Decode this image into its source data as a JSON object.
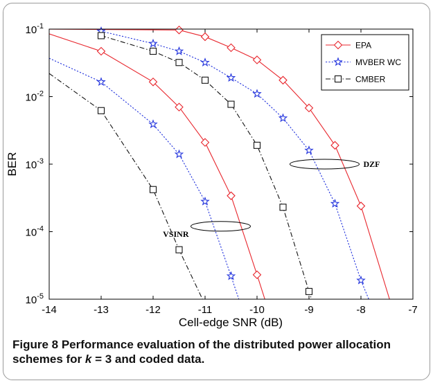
{
  "chart_data": {
    "type": "line",
    "xlabel": "Cell-edge SNR (dB)",
    "ylabel": "BER",
    "xlim": [
      -14,
      -7
    ],
    "ylim": [
      1e-05,
      0.1
    ],
    "yscale": "log",
    "xticks": [
      "-14",
      "-13",
      "-12",
      "-11",
      "-10",
      "-9",
      "-8",
      "-7"
    ],
    "yticks": [
      {
        "base": "10",
        "exp": "-1"
      },
      {
        "base": "10",
        "exp": "-2"
      },
      {
        "base": "10",
        "exp": "-3"
      },
      {
        "base": "10",
        "exp": "-4"
      },
      {
        "base": "10",
        "exp": "-5"
      }
    ],
    "legend": {
      "position": "top-right",
      "entries": [
        {
          "label": "EPA",
          "marker": "diamond",
          "color": "#e8262d",
          "dash": "solid"
        },
        {
          "label": "MVBER WC",
          "marker": "star",
          "color": "#2233dd",
          "dash": "dotted"
        },
        {
          "label": "CMBER",
          "marker": "square",
          "color": "#111111",
          "dash": "dashdot"
        }
      ]
    },
    "series": [
      {
        "name": "EPA",
        "group": "VSINR",
        "marker": "diamond",
        "color": "#e8262d",
        "dash": "solid",
        "x": [
          -14,
          -13,
          -12,
          -11.5,
          -11,
          -10.5,
          -10,
          -9.85
        ],
        "y": [
          0.085,
          0.047,
          0.0165,
          0.007,
          0.0021,
          0.00034,
          2.3e-05,
          1e-05
        ]
      },
      {
        "name": "MVBER WC",
        "group": "VSINR",
        "marker": "star",
        "color": "#2233dd",
        "dash": "dotted",
        "x": [
          -14,
          -13,
          -12,
          -11.5,
          -11,
          -10.5,
          -10.35
        ],
        "y": [
          0.037,
          0.0165,
          0.0039,
          0.0014,
          0.00028,
          2.2e-05,
          1e-05
        ]
      },
      {
        "name": "CMBER",
        "group": "VSINR",
        "marker": "square",
        "color": "#111111",
        "dash": "dashdot",
        "x": [
          -14,
          -13,
          -12,
          -11.5,
          -11.05
        ],
        "y": [
          0.022,
          0.0062,
          0.00042,
          5.4e-05,
          1e-05
        ]
      },
      {
        "name": "EPA",
        "group": "DZF",
        "marker": "diamond",
        "color": "#e8262d",
        "dash": "solid",
        "x": [
          -14.2,
          -11.5,
          -11,
          -10.5,
          -10,
          -9.5,
          -9,
          -8.5,
          -8,
          -7.45
        ],
        "y": [
          0.1,
          0.097,
          0.077,
          0.053,
          0.035,
          0.0175,
          0.0068,
          0.0019,
          0.00024,
          1e-05
        ]
      },
      {
        "name": "MVBER WC",
        "group": "DZF",
        "marker": "star",
        "color": "#2233dd",
        "dash": "dotted",
        "x": [
          -13,
          -12,
          -11.5,
          -11,
          -10.5,
          -10,
          -9.5,
          -9,
          -8.5,
          -8,
          -7.85
        ],
        "y": [
          0.093,
          0.061,
          0.047,
          0.032,
          0.019,
          0.011,
          0.0048,
          0.0016,
          0.00026,
          1.9e-05,
          1e-05
        ]
      },
      {
        "name": "CMBER",
        "group": "DZF",
        "marker": "square",
        "color": "#111111",
        "dash": "dashdot",
        "x": [
          -13,
          -12,
          -11.5,
          -11,
          -10.5,
          -10,
          -9.5,
          -9,
          -8.95
        ],
        "y": [
          0.08,
          0.047,
          0.032,
          0.0175,
          0.0077,
          0.0019,
          0.00023,
          1.3e-05,
          1e-05
        ]
      }
    ],
    "annotations": [
      {
        "text": "DZF",
        "ellipse_center": [
          -8.7,
          0.001
        ]
      },
      {
        "text": "VSINR",
        "ellipse_center": [
          -10.7,
          0.00012
        ]
      }
    ]
  },
  "caption": {
    "label": "Figure 8",
    "text_1": " Performance evaluation of the distributed power allocation schemes for ",
    "variable": "k",
    "text_2": " = 3 and coded data."
  }
}
